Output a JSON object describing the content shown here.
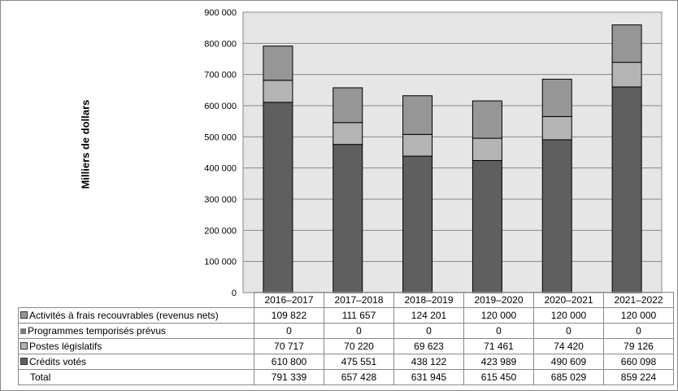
{
  "chart_data": {
    "type": "stacked-bar",
    "ylabel": "Milliers de dollars",
    "ylim": [
      0,
      900000
    ],
    "yticks": [
      "0",
      "100 000",
      "200 000",
      "300 000",
      "400 000",
      "500 000",
      "600 000",
      "700 000",
      "800 000",
      "900 000"
    ],
    "grid": true,
    "legend": "table-below",
    "categories": [
      "2016–2017",
      "2017–2018",
      "2018–2019",
      "2019–2020",
      "2020–2021",
      "2021–2022"
    ],
    "series": [
      {
        "name": "Activités à frais recouvrables (revenus nets)",
        "color": "#969696",
        "values": [
          109822,
          111657,
          124201,
          120000,
          120000,
          120000
        ],
        "labels": [
          "109 822",
          "111 657",
          "124 201",
          "120 000",
          "120 000",
          "120 000"
        ]
      },
      {
        "name": "Programmes temporisés prévus",
        "color": "#7a7a7a",
        "values": [
          0,
          0,
          0,
          0,
          0,
          0
        ],
        "labels": [
          "0",
          "0",
          "0",
          "0",
          "0",
          "0"
        ]
      },
      {
        "name": "Postes législatifs",
        "color": "#b4b4b4",
        "values": [
          70717,
          70220,
          69623,
          71461,
          74420,
          79126
        ],
        "labels": [
          "70 717",
          "70 220",
          "69 623",
          "71 461",
          "74 420",
          "79 126"
        ]
      },
      {
        "name": "Crédits votés",
        "color": "#5f5f5f",
        "values": [
          610800,
          475551,
          438122,
          423989,
          490609,
          660098
        ],
        "labels": [
          "610 800",
          "475 551",
          "438 122",
          "423 989",
          "490 609",
          "660 098"
        ]
      }
    ],
    "total": {
      "name": "Total",
      "values": [
        791339,
        657428,
        631945,
        615450,
        685029,
        859224
      ],
      "labels": [
        "791 339",
        "657 428",
        "631 945",
        "615 450",
        "685 029",
        "859 224"
      ]
    }
  },
  "colors": {
    "plot_background": "#e6e6e6",
    "gridline": "#888888"
  }
}
